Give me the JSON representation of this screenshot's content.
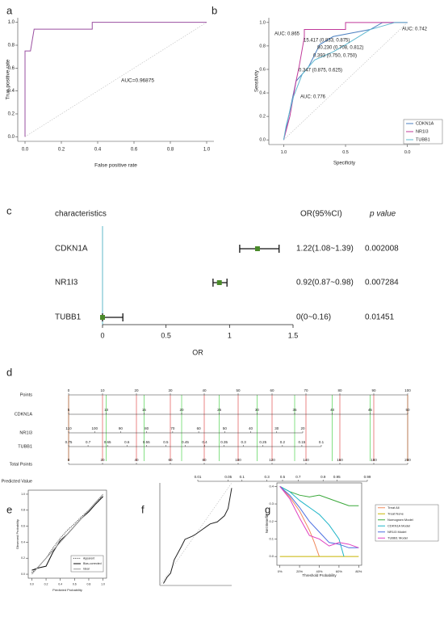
{
  "chart_data": [
    {
      "panel_label": "a",
      "type": "line",
      "xlabel": "False positive rate",
      "ylabel": "True positive rate",
      "xlim": [
        -0.04,
        1.04
      ],
      "ylim": [
        -0.04,
        1.04
      ],
      "xticks": [
        {
          "value": 0,
          "label": "0.0"
        },
        0.2,
        0.4,
        0.6,
        0.8,
        {
          "value": 1,
          "label": "1.0"
        }
      ],
      "yticks": [
        {
          "value": 0,
          "label": "0.0"
        },
        0.2,
        0.4,
        0.6,
        0.8,
        {
          "value": 1,
          "label": "1.0"
        }
      ],
      "diagonal": true,
      "annotations": [
        "AUC=0.96875"
      ],
      "series": [
        {
          "color": "#9a4fa0",
          "x": [
            0,
            0,
            0.03,
            0.05,
            0.37,
            0.37,
            1
          ],
          "values": [
            0,
            0.75,
            0.75,
            0.94,
            0.94,
            1,
            1
          ]
        }
      ]
    },
    {
      "panel_label": "b",
      "type": "line",
      "xlabel": "Specificity",
      "ylabel": "Sensitivity",
      "xlim": [
        1.12,
        -0.1
      ],
      "ylim": [
        -0.04,
        1.04
      ],
      "xticks": [
        {
          "value": 1,
          "label": "1.0"
        },
        0.5,
        {
          "value": 0,
          "label": "0.0"
        }
      ],
      "yticks": [
        {
          "value": 0,
          "label": "0.0"
        },
        0.2,
        0.4,
        0.6,
        0.8,
        {
          "value": 1,
          "label": "1.0"
        }
      ],
      "diagonal": true,
      "legend": "lower right",
      "annotations": [
        {
          "text": "AUC: 0.865",
          "color": "#c0399a"
        },
        {
          "text": "AUC: 0.742",
          "color": "#5fb8d0"
        },
        {
          "text": "AUC: 0.776",
          "color": "#4a7fc0"
        },
        {
          "text": "15.417 (0.833, 0.875)",
          "color": "#222"
        },
        {
          "text": "80.230 (0.708, 0.812)",
          "color": "#222"
        },
        {
          "text": "0.393 (0.750, 0.750)",
          "color": "#222"
        },
        {
          "text": "0.347 (0.875, 0.625)",
          "color": "#222"
        }
      ],
      "series": [
        {
          "name": "CDKN1A",
          "color": "#4a7fc0",
          "x": [
            1,
            0.95,
            0.9,
            0.8,
            0.708,
            0.6,
            0.3,
            0.2,
            0
          ],
          "values": [
            0,
            0.25,
            0.5,
            0.62,
            0.812,
            0.88,
            0.94,
            1,
            1
          ]
        },
        {
          "name": "NR1I3",
          "color": "#c0399a",
          "x": [
            1,
            0.95,
            0.9,
            0.875,
            0.833,
            0.833,
            0.5,
            0.5,
            0
          ],
          "values": [
            0,
            0.2,
            0.5,
            0.625,
            0.875,
            0.94,
            0.94,
            1,
            1
          ]
        },
        {
          "name": "TUBB1",
          "color": "#5fb8d0",
          "x": [
            1,
            0.98,
            0.92,
            0.85,
            0.75,
            0.6,
            0.5,
            0.3,
            0.1,
            0
          ],
          "values": [
            0,
            0.12,
            0.37,
            0.56,
            0.68,
            0.75,
            0.81,
            0.94,
            1,
            1
          ]
        }
      ]
    },
    {
      "panel_label": "c",
      "type": "forest",
      "headers": [
        "characteristics",
        "OR(95%CI)",
        "p value"
      ],
      "categories": [
        "CDKN1A",
        "NR1I3",
        "TUBB1"
      ],
      "values": [
        1.22,
        0.92,
        0
      ],
      "lower": [
        1.08,
        0.87,
        0
      ],
      "upper": [
        1.39,
        0.98,
        0.16
      ],
      "value_labels": [
        "1.22(1.08~1.39)",
        "0.92(0.87~0.98)",
        "0(0~0.16)"
      ],
      "p_values": [
        0.002008,
        0.007284,
        0.01451
      ],
      "xlabel": "OR",
      "xlim": [
        0,
        1.5
      ],
      "xticks": [
        0,
        0.5,
        1,
        1.5
      ],
      "reference_line": 0,
      "color": "#4a8a2a",
      "reference_color": "#5fb8c8"
    },
    {
      "panel_label": "d",
      "type": "nomogram",
      "scales": [
        {
          "name": "Points",
          "ticks": [
            0,
            10,
            20,
            30,
            40,
            50,
            60,
            70,
            80,
            90,
            100
          ]
        },
        {
          "name": "CDKN1A",
          "ticks": [
            5,
            10,
            15,
            20,
            25,
            30,
            35,
            40,
            45,
            50
          ]
        },
        {
          "name": "NR1I3",
          "ticks": [
            110,
            100,
            90,
            80,
            70,
            60,
            50,
            40,
            30,
            20
          ]
        },
        {
          "name": "TUBB1",
          "ticks": [
            0.75,
            0.7,
            0.65,
            0.6,
            0.55,
            0.5,
            0.45,
            0.4,
            0.35,
            0.3,
            0.25,
            0.2,
            0.15,
            0.1
          ]
        },
        {
          "name": "Total Points",
          "ticks": [
            0,
            20,
            40,
            60,
            80,
            100,
            120,
            140,
            160,
            180,
            200
          ]
        },
        {
          "name": "Predicted Value",
          "ticks": [
            0.01,
            0.05,
            0.1,
            0.3,
            0.5,
            0.7,
            0.9,
            0.95,
            0.99
          ],
          "scale": "logit"
        }
      ],
      "grid_color": "#d33",
      "minor_grid_color": "#3c3"
    },
    {
      "panel_label": "e",
      "type": "line",
      "xlabel": "Predicted Probability",
      "ylabel": "Observed Probability",
      "xlim": [
        -0.05,
        1.05
      ],
      "ylim": [
        -0.05,
        1.05
      ],
      "frame": true,
      "legend": "lower right",
      "xticks": [
        {
          "value": 0,
          "label": "0.0"
        },
        0.2,
        0.4,
        0.6,
        0.8,
        {
          "value": 1,
          "label": "1.0"
        }
      ],
      "yticks": [
        {
          "value": 0,
          "label": "0.0"
        },
        0.2,
        0.4,
        0.6,
        0.8,
        {
          "value": 1,
          "label": "1.0"
        }
      ],
      "series": [
        {
          "name": "Apparent",
          "color": "#333",
          "style": "dotted",
          "x": [
            0,
            0.1,
            0.2,
            0.3,
            0.4,
            0.5,
            0.6,
            0.7,
            0.8,
            0.9,
            1
          ],
          "values": [
            0.02,
            0.1,
            0.2,
            0.33,
            0.45,
            0.55,
            0.63,
            0.72,
            0.8,
            0.9,
            0.98
          ]
        },
        {
          "name": "Bias-corrected",
          "color": "#111",
          "style": "solid",
          "x": [
            0,
            0.1,
            0.2,
            0.3,
            0.4,
            0.5,
            0.6,
            0.7,
            0.8,
            0.9,
            1
          ],
          "values": [
            0.05,
            0.08,
            0.1,
            0.28,
            0.42,
            0.5,
            0.6,
            0.7,
            0.78,
            0.88,
            0.97
          ]
        },
        {
          "name": "Ideal",
          "color": "#999",
          "style": "solid",
          "x": [
            0,
            1
          ],
          "values": [
            0,
            1
          ]
        }
      ]
    },
    {
      "panel_label": "f",
      "type": "line",
      "xlim": [
        0,
        1
      ],
      "ylim": [
        0,
        1
      ],
      "diagonal": true,
      "series": [
        {
          "color": "#222",
          "style": "solid",
          "x": [
            0.05,
            0.1,
            0.15,
            0.2,
            0.3,
            0.35,
            0.45,
            0.5,
            0.6,
            0.7,
            0.8,
            0.9,
            0.95,
            1
          ],
          "values": [
            0.02,
            0.08,
            0.12,
            0.25,
            0.38,
            0.45,
            0.48,
            0.5,
            0.55,
            0.6,
            0.62,
            0.68,
            0.75,
            0.95
          ]
        }
      ]
    },
    {
      "panel_label": "g",
      "type": "line",
      "xlabel": "Threshold Probability",
      "ylabel": "Net Benefit",
      "xlim": [
        -0.03,
        0.83
      ],
      "ylim": [
        -0.05,
        0.42
      ],
      "frame": true,
      "legend": "right",
      "xticks": [
        {
          "value": 0,
          "label": "0%"
        },
        {
          "value": 0.2,
          "label": "20%"
        },
        {
          "value": 0.4,
          "label": "40%"
        },
        {
          "value": 0.6,
          "label": "60%"
        },
        {
          "value": 0.8,
          "label": "80%"
        }
      ],
      "yticks": [
        {
          "value": 0,
          "label": "0.0"
        },
        0.1,
        0.2,
        0.3,
        0.4
      ],
      "series": [
        {
          "name": "Treat All",
          "color": "#f08a5d",
          "x": [
            0,
            0.1,
            0.2,
            0.3,
            0.35,
            0.4
          ],
          "values": [
            0.4,
            0.34,
            0.26,
            0.15,
            0.08,
            0
          ]
        },
        {
          "name": "Treat None",
          "color": "#c8b400",
          "x": [
            0,
            0.8
          ],
          "values": [
            0,
            0
          ]
        },
        {
          "name": "Nomogram Model",
          "color": "#3aa83a",
          "x": [
            0,
            0.1,
            0.2,
            0.3,
            0.4,
            0.5,
            0.6,
            0.7,
            0.8
          ],
          "values": [
            0.4,
            0.37,
            0.35,
            0.34,
            0.35,
            0.33,
            0.31,
            0.29,
            0.29
          ]
        },
        {
          "name": "CDKN1A Model",
          "color": "#1fb5c8",
          "x": [
            0,
            0.1,
            0.2,
            0.3,
            0.4,
            0.5,
            0.6,
            0.65
          ],
          "values": [
            0.4,
            0.37,
            0.32,
            0.28,
            0.24,
            0.18,
            0.1,
            0
          ]
        },
        {
          "name": "NR1I3 Model",
          "color": "#4a6ee0",
          "x": [
            0,
            0.1,
            0.2,
            0.3,
            0.4,
            0.5,
            0.6,
            0.7,
            0.8
          ],
          "values": [
            0.4,
            0.35,
            0.28,
            0.2,
            0.14,
            0.08,
            0.07,
            0.05,
            0.05
          ]
        },
        {
          "name": "TUBB1 Model",
          "color": "#e040c0",
          "x": [
            0,
            0.1,
            0.2,
            0.3,
            0.4,
            0.5,
            0.6,
            0.7,
            0.8
          ],
          "values": [
            0.4,
            0.33,
            0.22,
            0.12,
            0.1,
            0.06,
            0.08,
            0.07,
            0.05
          ]
        }
      ]
    }
  ]
}
